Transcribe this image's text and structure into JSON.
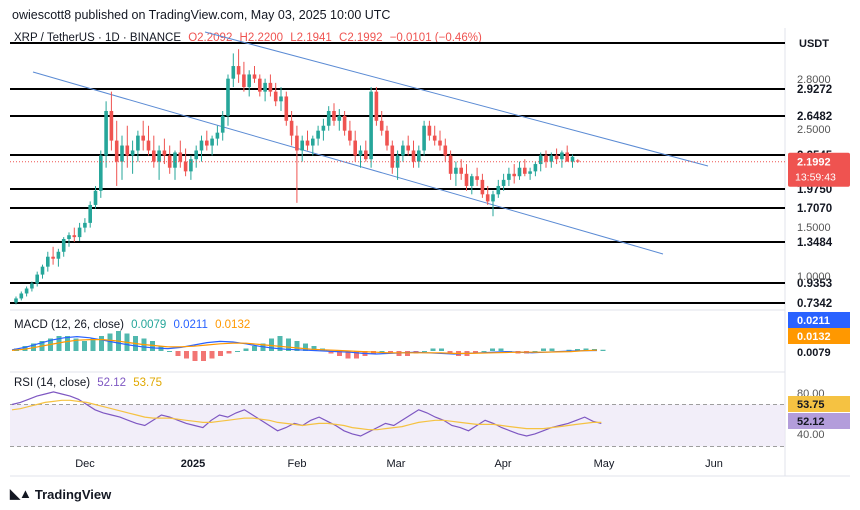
{
  "header": {
    "publisher": "owiescott8 published on TradingView.com, May 03, 2025 10:00 UTC"
  },
  "symbol": {
    "name": "XRP / TetherUS · 1D · BINANCE",
    "open": "O2.2092",
    "high": "H2.2200",
    "low": "L2.1941",
    "close": "C2.1992",
    "change": "−0.0101 (−0.46%)",
    "currency": "USDT"
  },
  "price_badge": {
    "price": "2.1992",
    "countdown": "13:59:43"
  },
  "macd_legend": {
    "label": "MACD (12, 26, close)",
    "v1": "0.0079",
    "v2": "0.0211",
    "v3": "0.0132"
  },
  "macd_axis": {
    "a": "0.0211",
    "b": "0.0132",
    "c": "0.0079"
  },
  "rsi_legend": {
    "label": "RSI (14, close)",
    "v1": "52.12",
    "v2": "53.75"
  },
  "rsi_axis": {
    "top": "80.00",
    "a": "53.75",
    "b": "52.12",
    "bottom": "40.00"
  },
  "footer": {
    "brand": "TradingView"
  },
  "colors": {
    "up": "#26a69a",
    "down": "#ef5350",
    "channel": "#5b8bd4",
    "macd": "#2962ff",
    "signal": "#ff9800",
    "rsi": "#7e57c2",
    "rsi_ma": "#f5c242"
  },
  "chart_data": {
    "type": "candlestick",
    "xaxis_ticks": [
      "Dec",
      "2025",
      "Feb",
      "Mar",
      "Apr",
      "May",
      "Jun"
    ],
    "yaxis_ticks": [
      "2.8000",
      "2.5000",
      "1.5000",
      "1.0000"
    ],
    "levels": [
      "2.9272",
      "2.6482",
      "2.2545",
      "1.9750",
      "1.7070",
      "1.3484",
      "0.9353",
      "0.7342"
    ],
    "ohlc": [
      [
        0.74,
        0.8,
        0.72,
        0.78
      ],
      [
        0.78,
        0.85,
        0.76,
        0.83
      ],
      [
        0.83,
        0.9,
        0.8,
        0.88
      ],
      [
        0.88,
        0.95,
        0.85,
        0.93
      ],
      [
        0.93,
        1.05,
        0.9,
        1.02
      ],
      [
        1.02,
        1.12,
        0.98,
        1.1
      ],
      [
        1.1,
        1.25,
        1.05,
        1.2
      ],
      [
        1.2,
        1.3,
        1.12,
        1.18
      ],
      [
        1.18,
        1.28,
        1.1,
        1.25
      ],
      [
        1.25,
        1.4,
        1.2,
        1.38
      ],
      [
        1.38,
        1.45,
        1.3,
        1.42
      ],
      [
        1.42,
        1.5,
        1.35,
        1.4
      ],
      [
        1.4,
        1.55,
        1.36,
        1.5
      ],
      [
        1.5,
        1.6,
        1.45,
        1.55
      ],
      [
        1.55,
        1.8,
        1.5,
        1.75
      ],
      [
        1.75,
        2.0,
        1.7,
        1.95
      ],
      [
        1.95,
        2.3,
        1.85,
        2.25
      ],
      [
        2.25,
        2.8,
        2.15,
        2.7
      ],
      [
        2.7,
        2.9,
        2.3,
        2.4
      ],
      [
        2.4,
        2.6,
        2.0,
        2.2
      ],
      [
        2.2,
        2.45,
        2.05,
        2.35
      ],
      [
        2.35,
        2.55,
        2.15,
        2.25
      ],
      [
        2.25,
        2.4,
        2.1,
        2.3
      ],
      [
        2.3,
        2.5,
        2.2,
        2.45
      ],
      [
        2.45,
        2.6,
        2.3,
        2.4
      ],
      [
        2.4,
        2.55,
        2.25,
        2.3
      ],
      [
        2.3,
        2.45,
        2.15,
        2.2
      ],
      [
        2.2,
        2.35,
        2.05,
        2.3
      ],
      [
        2.3,
        2.42,
        2.18,
        2.25
      ],
      [
        2.25,
        2.35,
        2.1,
        2.15
      ],
      [
        2.15,
        2.3,
        2.05,
        2.28
      ],
      [
        2.28,
        2.4,
        2.15,
        2.2
      ],
      [
        2.2,
        2.32,
        2.08,
        2.12
      ],
      [
        2.12,
        2.25,
        2.05,
        2.22
      ],
      [
        2.22,
        2.35,
        2.15,
        2.3
      ],
      [
        2.3,
        2.45,
        2.2,
        2.4
      ],
      [
        2.4,
        2.5,
        2.3,
        2.35
      ],
      [
        2.35,
        2.45,
        2.25,
        2.42
      ],
      [
        2.42,
        2.55,
        2.35,
        2.48
      ],
      [
        2.48,
        2.7,
        2.4,
        2.65
      ],
      [
        2.65,
        3.1,
        2.55,
        3.05
      ],
      [
        3.05,
        3.35,
        2.95,
        3.2
      ],
      [
        3.2,
        3.4,
        3.0,
        3.1
      ],
      [
        3.1,
        3.25,
        2.9,
        2.95
      ],
      [
        2.95,
        3.15,
        2.85,
        3.1
      ],
      [
        3.1,
        3.2,
        3.0,
        3.05
      ],
      [
        3.05,
        3.1,
        2.85,
        2.9
      ],
      [
        2.9,
        3.05,
        2.8,
        3.0
      ],
      [
        3.0,
        3.1,
        2.85,
        2.9
      ],
      [
        2.9,
        3.0,
        2.75,
        2.8
      ],
      [
        2.8,
        2.95,
        2.7,
        2.85
      ],
      [
        2.85,
        2.9,
        2.55,
        2.6
      ],
      [
        2.6,
        2.7,
        2.35,
        2.45
      ],
      [
        2.45,
        2.55,
        1.78,
        2.3
      ],
      [
        2.3,
        2.45,
        2.2,
        2.4
      ],
      [
        2.4,
        2.5,
        2.3,
        2.35
      ],
      [
        2.35,
        2.45,
        2.25,
        2.42
      ],
      [
        2.42,
        2.55,
        2.35,
        2.5
      ],
      [
        2.5,
        2.62,
        2.4,
        2.55
      ],
      [
        2.55,
        2.75,
        2.5,
        2.7
      ],
      [
        2.7,
        2.78,
        2.55,
        2.6
      ],
      [
        2.6,
        2.72,
        2.5,
        2.65
      ],
      [
        2.65,
        2.7,
        2.45,
        2.5
      ],
      [
        2.5,
        2.6,
        2.35,
        2.4
      ],
      [
        2.4,
        2.5,
        2.2,
        2.25
      ],
      [
        2.25,
        2.35,
        2.15,
        2.3
      ],
      [
        2.3,
        2.4,
        2.2,
        2.22
      ],
      [
        2.22,
        2.95,
        2.15,
        2.9
      ],
      [
        2.9,
        2.95,
        2.55,
        2.6
      ],
      [
        2.6,
        2.7,
        2.45,
        2.5
      ],
      [
        2.5,
        2.55,
        2.3,
        2.35
      ],
      [
        2.35,
        2.4,
        2.1,
        2.15
      ],
      [
        2.15,
        2.3,
        2.05,
        2.25
      ],
      [
        2.25,
        2.4,
        2.2,
        2.35
      ],
      [
        2.35,
        2.45,
        2.25,
        2.3
      ],
      [
        2.3,
        2.4,
        2.15,
        2.2
      ],
      [
        2.2,
        2.35,
        2.15,
        2.3
      ],
      [
        2.3,
        2.6,
        2.25,
        2.55
      ],
      [
        2.55,
        2.6,
        2.4,
        2.45
      ],
      [
        2.45,
        2.55,
        2.35,
        2.4
      ],
      [
        2.4,
        2.5,
        2.3,
        2.35
      ],
      [
        2.35,
        2.42,
        2.2,
        2.25
      ],
      [
        2.25,
        2.3,
        2.05,
        2.1
      ],
      [
        2.1,
        2.2,
        2.0,
        2.15
      ],
      [
        2.15,
        2.22,
        2.05,
        2.1
      ],
      [
        2.1,
        2.18,
        1.95,
        2.0
      ],
      [
        2.0,
        2.1,
        1.9,
        2.08
      ],
      [
        2.08,
        2.15,
        2.0,
        2.05
      ],
      [
        2.05,
        2.1,
        1.85,
        1.9
      ],
      [
        1.9,
        2.0,
        1.75,
        1.8
      ],
      [
        1.8,
        1.95,
        1.62,
        1.9
      ],
      [
        1.9,
        2.05,
        1.85,
        2.0
      ],
      [
        2.0,
        2.1,
        1.95,
        2.05
      ],
      [
        2.05,
        2.15,
        2.0,
        2.1
      ],
      [
        2.1,
        2.18,
        2.02,
        2.08
      ],
      [
        2.08,
        2.2,
        2.05,
        2.15
      ],
      [
        2.15,
        2.22,
        2.08,
        2.1
      ],
      [
        2.1,
        2.15,
        2.05,
        2.12
      ],
      [
        2.12,
        2.2,
        2.08,
        2.18
      ],
      [
        2.18,
        2.28,
        2.12,
        2.25
      ],
      [
        2.25,
        2.3,
        2.15,
        2.2
      ],
      [
        2.2,
        2.28,
        2.15,
        2.25
      ],
      [
        2.25,
        2.32,
        2.18,
        2.22
      ],
      [
        2.22,
        2.3,
        2.15,
        2.28
      ],
      [
        2.28,
        2.35,
        2.2,
        2.2
      ],
      [
        2.2,
        2.26,
        2.15,
        2.24
      ],
      [
        2.21,
        2.22,
        2.19,
        2.2
      ]
    ],
    "macd_hist": [
      0.01,
      0.02,
      0.03,
      0.04,
      0.05,
      0.06,
      0.06,
      0.05,
      0.04,
      0.05,
      0.06,
      0.07,
      0.08,
      0.07,
      0.06,
      0.05,
      0.04,
      0.02,
      0.0,
      -0.02,
      -0.03,
      -0.04,
      -0.04,
      -0.03,
      -0.02,
      -0.01,
      0.0,
      0.01,
      0.02,
      0.03,
      0.05,
      0.06,
      0.05,
      0.04,
      0.03,
      0.02,
      0.01,
      -0.01,
      -0.02,
      -0.03,
      -0.03,
      -0.02,
      -0.01,
      0.0,
      -0.01,
      -0.02,
      -0.02,
      -0.01,
      0.0,
      0.01,
      0.01,
      -0.01,
      -0.02,
      -0.02,
      -0.01,
      0.0,
      0.01,
      0.01,
      0.0,
      -0.01,
      -0.01,
      0.0,
      0.01,
      0.01,
      0.0,
      0.005,
      0.008,
      0.01,
      0.008,
      0.005
    ],
    "macd_line": [
      0.02,
      0.06,
      0.12,
      0.18,
      0.22,
      0.24,
      0.22,
      0.18,
      0.14,
      0.1,
      0.07,
      0.05,
      0.04,
      0.06,
      0.1,
      0.14,
      0.16,
      0.15,
      0.12,
      0.08,
      0.05,
      0.03,
      0.02,
      0.01,
      0.0,
      -0.01,
      -0.02,
      -0.04,
      -0.05,
      -0.04,
      -0.03,
      -0.02,
      -0.03,
      -0.04,
      -0.05,
      -0.04,
      -0.03,
      -0.02,
      -0.01,
      -0.02,
      -0.03,
      -0.02,
      -0.01,
      0.0,
      0.005,
      0.008
    ],
    "macd_signal": [
      0.01,
      0.03,
      0.07,
      0.11,
      0.15,
      0.18,
      0.19,
      0.19,
      0.17,
      0.14,
      0.11,
      0.09,
      0.07,
      0.07,
      0.08,
      0.1,
      0.12,
      0.13,
      0.13,
      0.11,
      0.09,
      0.07,
      0.05,
      0.03,
      0.02,
      0.01,
      0.0,
      -0.01,
      -0.02,
      -0.03,
      -0.03,
      -0.03,
      -0.03,
      -0.03,
      -0.04,
      -0.04,
      -0.035,
      -0.03,
      -0.025,
      -0.02,
      -0.02,
      -0.02,
      -0.015,
      -0.01,
      0.005,
      0.013
    ],
    "rsi": [
      70,
      72,
      75,
      78,
      80,
      82,
      80,
      78,
      75,
      70,
      65,
      62,
      60,
      58,
      55,
      52,
      50,
      55,
      60,
      58,
      55,
      52,
      50,
      48,
      55,
      60,
      58,
      62,
      65,
      60,
      55,
      50,
      45,
      48,
      52,
      50,
      55,
      58,
      54,
      50,
      45,
      42,
      40,
      44,
      48,
      52,
      50,
      55,
      60,
      65,
      62,
      58,
      55,
      50,
      48,
      45,
      50,
      55,
      52,
      48,
      45,
      42,
      40,
      42,
      45,
      48,
      50,
      52,
      55,
      58,
      54,
      52
    ],
    "rsi_ma": [
      65,
      66,
      68,
      70,
      72,
      73,
      74,
      74,
      73,
      72,
      70,
      68,
      66,
      64,
      62,
      60,
      58,
      57,
      57,
      57,
      56,
      55,
      54,
      53,
      53,
      54,
      55,
      56,
      57,
      57,
      56,
      55,
      53,
      52,
      51,
      50,
      51,
      52,
      52,
      51,
      50,
      48,
      47,
      46,
      46,
      47,
      48,
      49,
      51,
      53,
      54,
      55,
      55,
      54,
      53,
      52,
      51,
      51,
      51,
      50,
      49,
      48,
      47,
      47,
      47,
      48,
      49,
      50,
      51,
      52,
      53,
      53
    ]
  }
}
